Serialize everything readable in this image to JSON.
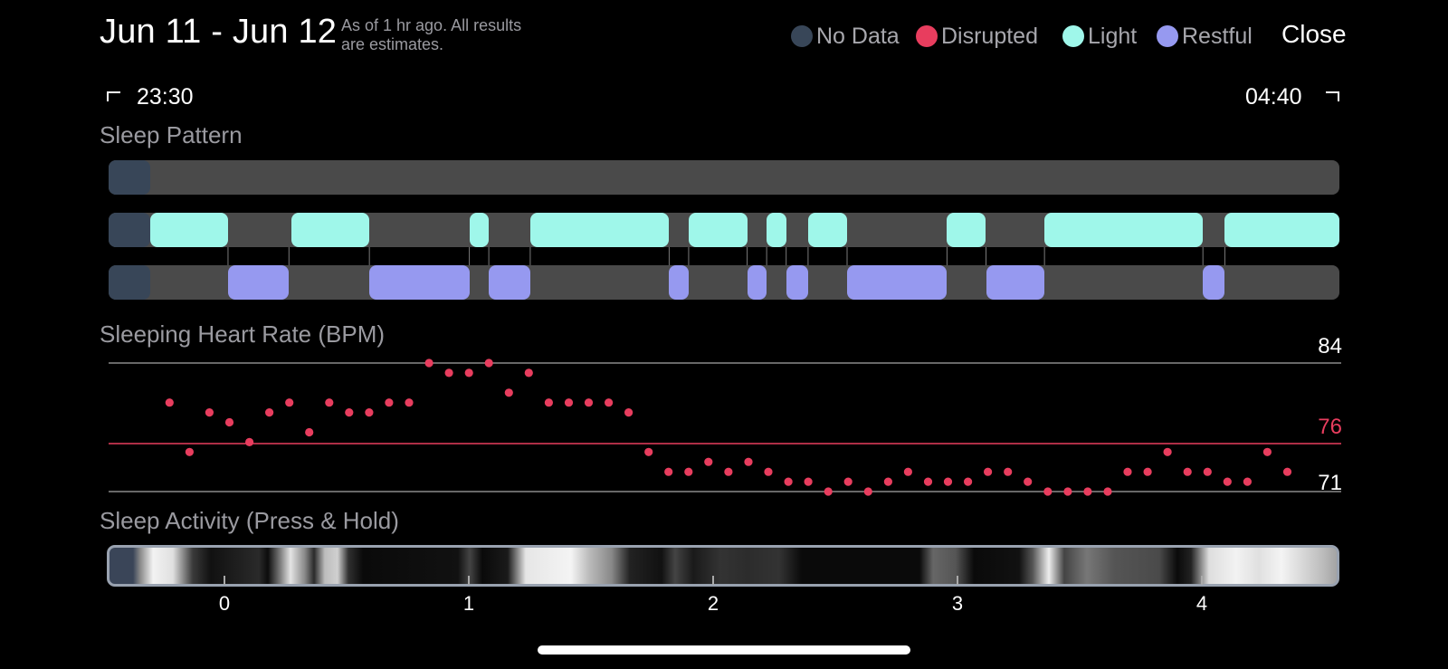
{
  "header": {
    "date_range": "Jun 11 - Jun 12",
    "note_line1": "As of 1 hr ago. All results",
    "note_line2": "are estimates.",
    "close_label": "Close"
  },
  "legend": [
    {
      "label": "No Data",
      "color": "#384658"
    },
    {
      "label": "Disrupted",
      "color": "#e83d5e"
    },
    {
      "label": "Light",
      "color": "#9ff7ea"
    },
    {
      "label": "Restful",
      "color": "#9699f0"
    }
  ],
  "time_range": {
    "start": "23:30",
    "end": "04:40"
  },
  "sleep_pattern": {
    "title": "Sleep Pattern",
    "axis_range_hours": [
      -0.5,
      4.55
    ],
    "disrupted_row": [
      [
        -0.5,
        -0.33
      ]
    ],
    "light_row": [
      [
        -0.5,
        -0.33
      ],
      [
        -0.33,
        -0.01
      ],
      [
        0.25,
        0.57
      ],
      [
        0.98,
        1.06
      ],
      [
        1.23,
        1.8
      ],
      [
        1.88,
        2.12
      ],
      [
        2.2,
        2.28
      ],
      [
        2.37,
        2.53
      ],
      [
        2.94,
        3.1
      ],
      [
        3.34,
        3.99
      ],
      [
        4.08,
        4.55
      ]
    ],
    "restful_row": [
      [
        -0.5,
        -0.33
      ],
      [
        -0.01,
        0.24
      ],
      [
        0.57,
        0.98
      ],
      [
        1.06,
        1.23
      ],
      [
        1.8,
        1.88
      ],
      [
        2.12,
        2.2
      ],
      [
        2.28,
        2.37
      ],
      [
        2.53,
        2.94
      ],
      [
        3.1,
        3.34
      ],
      [
        3.99,
        4.08
      ]
    ]
  },
  "heart_rate": {
    "title": "Sleeping Heart Rate (BPM)",
    "max_label": "84",
    "avg_label": "76",
    "min_label": "71",
    "y_min": 71,
    "y_max": 84,
    "avg": 76,
    "x_start": -0.25,
    "x_step": 0.0819,
    "values": [
      80,
      75,
      79,
      78,
      76,
      79,
      80,
      77,
      80,
      79,
      79,
      80,
      80,
      84,
      83,
      83,
      84,
      81,
      83,
      80,
      80,
      80,
      80,
      79,
      75,
      73,
      73,
      74,
      73,
      74,
      73,
      72,
      72,
      71,
      72,
      71,
      72,
      73,
      72,
      72,
      72,
      73,
      73,
      72,
      71,
      71,
      71,
      71,
      73,
      73,
      75,
      73,
      73,
      72,
      72,
      75,
      73
    ]
  },
  "sleep_activity": {
    "title": "Sleep Activity (Press & Hold)",
    "x_ticks": [
      "0",
      "1",
      "2",
      "3",
      "4"
    ]
  }
}
